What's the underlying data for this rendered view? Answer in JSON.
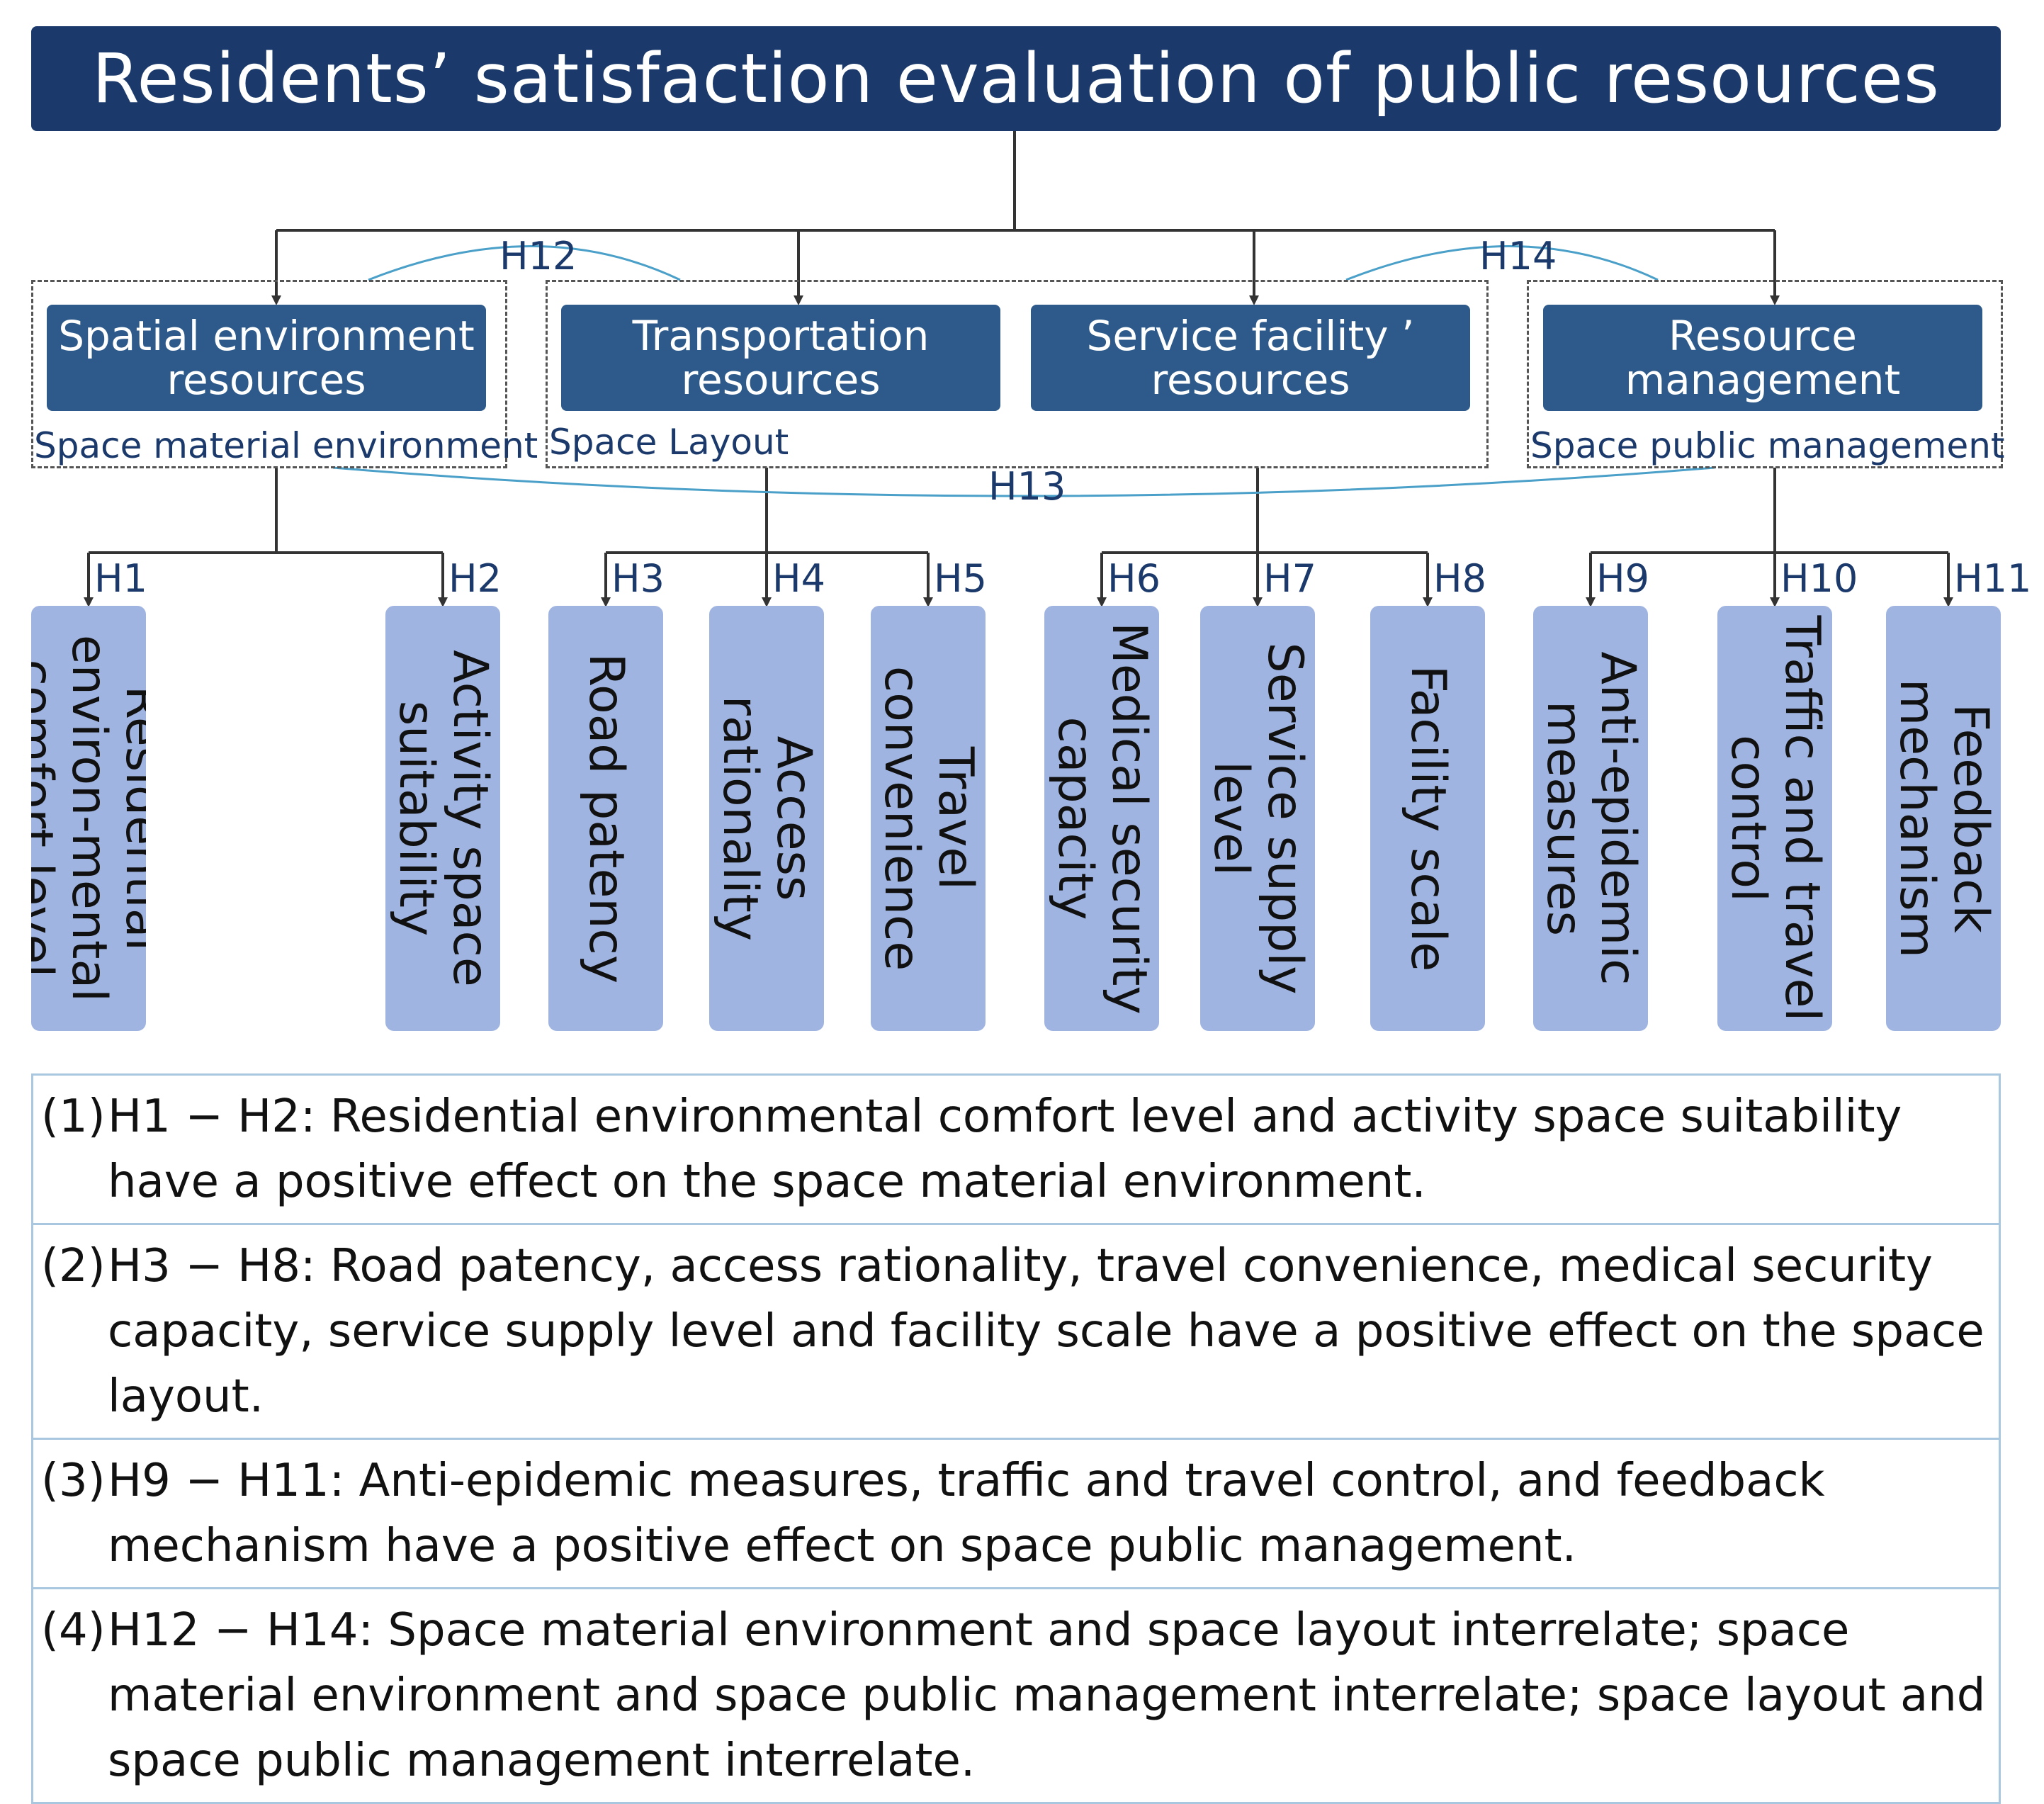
{
  "title": "Residents’ satisfaction evaluation of public resources",
  "categories": [
    {
      "label": "Spatial environment resources"
    },
    {
      "label": "Transportation resources"
    },
    {
      "label": "Service facility ’ resources"
    },
    {
      "label": "Resource management"
    }
  ],
  "groups": [
    {
      "label": "Space material environment"
    },
    {
      "label": "Space Layout"
    },
    {
      "label": "Space public management"
    }
  ],
  "relations": [
    {
      "label": "H12"
    },
    {
      "label": "H13"
    },
    {
      "label": "H14"
    }
  ],
  "items": [
    {
      "label": "H1",
      "text": "Residential environ-mental comfort level"
    },
    {
      "label": "H2",
      "text": "Activity space suitability"
    },
    {
      "label": "H3",
      "text": "Road patency"
    },
    {
      "label": "H4",
      "text": "Access rationality"
    },
    {
      "label": "H5",
      "text": "Travel convenience"
    },
    {
      "label": "H6",
      "text": "Medical security capacity"
    },
    {
      "label": "H7",
      "text": "Service supply level"
    },
    {
      "label": "H8",
      "text": "Facility scale"
    },
    {
      "label": "H9",
      "text": "Anti-epidemic measures"
    },
    {
      "label": "H10",
      "text": "Traffic and travel control"
    },
    {
      "label": "H11",
      "text": "Feedback mechanism"
    }
  ],
  "notes": [
    {
      "num": "(1)",
      "text": "H1 − H2: Residential environmental comfort level and activity space suitability have a positive effect on the space material environment."
    },
    {
      "num": "(2)",
      "text": "H3 − H8: Road patency, access rationality, travel convenience, medical security capacity, service supply level and facility scale have a positive effect on the space layout."
    },
    {
      "num": "(3)",
      "text": "H9 − H11: Anti-epidemic measures, traffic and travel control, and feedback mechanism have a positive effect on space public management."
    },
    {
      "num": "(4)",
      "text": "H12 − H14: Space material environment and space layout interrelate; space material environment and space public management interrelate; space layout and space public management interrelate."
    }
  ]
}
